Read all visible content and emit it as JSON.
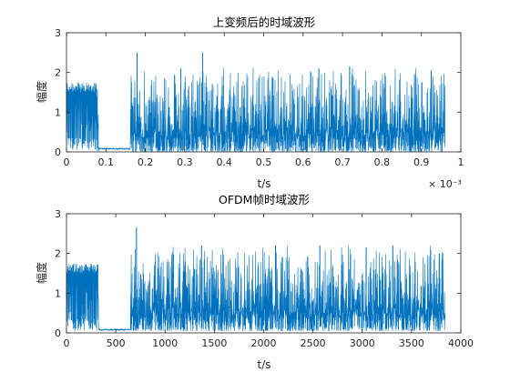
{
  "figure": {
    "background": "#ffffff",
    "axes_color": "#262626",
    "line_color": "#0072bd"
  },
  "chart_data": [
    {
      "type": "line",
      "title": "上变频后的时域波形",
      "xlabel": "t/s",
      "ylabel": "幅度",
      "xlim": [
        0,
        0.001
      ],
      "ylim": [
        0,
        3
      ],
      "x_ticks": [
        0,
        0.0001,
        0.0002,
        0.0003,
        0.0004,
        0.0005,
        0.0006,
        0.0007,
        0.0008,
        0.0009,
        0.001
      ],
      "x_tick_labels": [
        "0",
        "0.1",
        "0.2",
        "0.3",
        "0.4",
        "0.5",
        "0.6",
        "0.7",
        "0.8",
        "0.9",
        "1"
      ],
      "x_exponent_label": "× 10⁻³",
      "y_ticks": [
        0,
        1,
        2,
        3
      ],
      "y_tick_labels": [
        "0",
        "1",
        "2",
        "3"
      ],
      "grid": false,
      "series": [
        {
          "x_range": [
            0,
            0.00096
          ],
          "segments": [
            {
              "x_range": [
                0,
                7.65e-05
              ],
              "range": [
                0.05,
                1.75
              ],
              "description": "preamble block"
            },
            {
              "x_range": [
                7.65e-05,
                8.1e-05
              ],
              "range": [
                0,
                1.7
              ]
            },
            {
              "x_range": [
                8.1e-05,
                0.000162
              ],
              "range": [
                0.05,
                0.1
              ],
              "level": 0.08
            },
            {
              "x_range": [
                0.000162,
                0.00096
              ],
              "range": [
                0,
                2.5
              ]
            }
          ],
          "peaks": [
            {
              "x": 0.000179,
              "y": 2.5
            },
            {
              "x": 0.000345,
              "y": 2.5
            },
            {
              "x": 0.00029,
              "y": 2.1
            },
            {
              "x": 0.00064,
              "y": 2.1
            },
            {
              "x": 0.000718,
              "y": 2.15
            },
            {
              "x": 0.000925,
              "y": 2.05
            }
          ]
        }
      ]
    },
    {
      "type": "line",
      "title": "OFDM帧时域波形",
      "xlabel": "t/s",
      "ylabel": "幅度",
      "xlim": [
        0,
        4000
      ],
      "ylim": [
        0,
        3
      ],
      "x_ticks": [
        0,
        500,
        1000,
        1500,
        2000,
        2500,
        3000,
        3500,
        4000
      ],
      "x_tick_labels": [
        "0",
        "500",
        "1000",
        "1500",
        "2000",
        "2500",
        "3000",
        "3500",
        "4000"
      ],
      "y_ticks": [
        0,
        1,
        2,
        3
      ],
      "y_tick_labels": [
        "0",
        "1",
        "2",
        "3"
      ],
      "grid": false,
      "series": [
        {
          "x_range": [
            1,
            3840
          ],
          "segments": [
            {
              "x_range": [
                0,
                320
              ],
              "range": [
                0.05,
                1.75
              ],
              "description": "preamble block"
            },
            {
              "x_range": [
                320,
                325
              ],
              "range": [
                0,
                1.7
              ]
            },
            {
              "x_range": [
                325,
                650
              ],
              "range": [
                0.05,
                0.1
              ],
              "level": 0.08
            },
            {
              "x_range": [
                650,
                3840
              ],
              "range": [
                0.05,
                2.65
              ]
            }
          ],
          "peaks": [
            {
              "x": 710,
              "y": 2.65
            },
            {
              "x": 1370,
              "y": 2.2
            },
            {
              "x": 2120,
              "y": 2.2
            },
            {
              "x": 2570,
              "y": 2.2
            },
            {
              "x": 3040,
              "y": 2.15
            },
            {
              "x": 3310,
              "y": 2.2
            }
          ]
        }
      ]
    }
  ]
}
